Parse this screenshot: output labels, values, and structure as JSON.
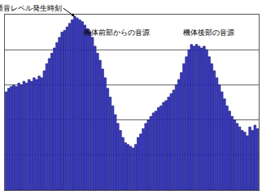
{
  "chart_data": {
    "type": "bar",
    "categories": [
      null,
      null,
      null,
      null,
      null,
      null,
      null,
      null,
      null,
      null,
      null,
      null,
      null,
      null,
      null,
      null,
      null,
      null,
      null,
      null,
      null,
      null,
      null,
      null,
      null,
      null,
      null,
      null,
      null,
      null,
      null,
      null,
      null,
      null,
      null,
      null,
      null,
      null,
      null,
      null,
      null,
      null,
      null,
      null,
      null,
      null,
      null,
      null,
      null,
      null,
      null,
      null,
      null,
      null,
      null,
      null,
      null,
      null,
      null,
      null,
      null,
      null,
      null,
      null,
      null,
      null,
      null,
      null,
      null,
      null,
      null,
      null,
      null,
      null,
      null,
      null,
      null,
      null,
      null,
      null,
      null,
      null,
      null,
      null,
      null,
      null,
      null,
      null,
      null,
      null,
      null,
      null,
      null,
      null,
      null,
      null,
      null,
      null,
      null,
      null
    ],
    "values": [
      56,
      58,
      59,
      60,
      59,
      61,
      60,
      62,
      61,
      63,
      62,
      64,
      63,
      65,
      64,
      68,
      72,
      75,
      78,
      81,
      84,
      87,
      90,
      91,
      93,
      95,
      97,
      99,
      98,
      97,
      96,
      94,
      92,
      90,
      87,
      82,
      78,
      74,
      69,
      64,
      58,
      53,
      48,
      43,
      38,
      34,
      30,
      27,
      26,
      25,
      24,
      26,
      30,
      32,
      35,
      38,
      40,
      42,
      44,
      45,
      47,
      48,
      50,
      51,
      53,
      55,
      57,
      60,
      63,
      67,
      72,
      76,
      80,
      83,
      82,
      83,
      82,
      81,
      82,
      80,
      76,
      72,
      68,
      64,
      60,
      56,
      52,
      48,
      45,
      42,
      40,
      38,
      36,
      34,
      33,
      31,
      36,
      34,
      37,
      35
    ],
    "color": "#3c3cc8",
    "ylim": [
      0,
      100
    ],
    "yticks": [
      0,
      20,
      40,
      60,
      80,
      100
    ],
    "grid": true,
    "tick_labels": false,
    "annotations": [
      {
        "text": "最大騒音レベル発生時刻",
        "x": 27
      },
      {
        "text": "機体前部からの音源",
        "x": 30
      },
      {
        "text": "機体後部の音源",
        "x": 69
      }
    ]
  }
}
